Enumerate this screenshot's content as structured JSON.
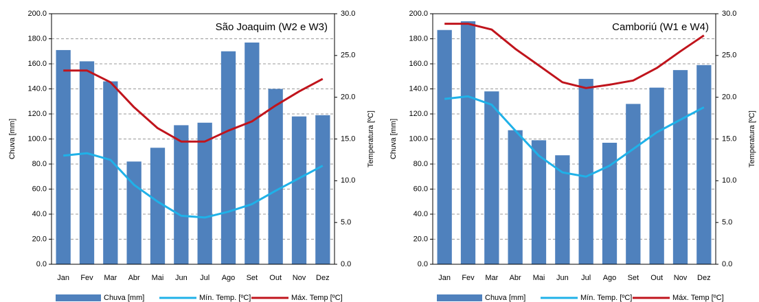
{
  "chart_data": [
    {
      "type": "bar",
      "title": "São Joaquim (W2 e W3)",
      "y_label": "Chuva [mm]",
      "y2_label": "Temperatura [ºC]",
      "categories": [
        "Jan",
        "Fev",
        "Mar",
        "Abr",
        "Mai",
        "Jun",
        "Jul",
        "Ago",
        "Set",
        "Out",
        "Nov",
        "Dez"
      ],
      "series": [
        {
          "name": "Chuva [mm]",
          "type": "bar",
          "color": "#4f81bd",
          "values": [
            171,
            162,
            146,
            82,
            93,
            111,
            113,
            170,
            177,
            140,
            118,
            119
          ]
        },
        {
          "name": "Mín. Temp. [ºC]",
          "type": "line",
          "axis": "y2",
          "color": "#1fb1e8",
          "values": [
            13.0,
            13.3,
            12.5,
            9.5,
            7.5,
            5.8,
            5.6,
            6.3,
            7.2,
            8.8,
            10.3,
            11.8
          ]
        },
        {
          "name": "Máx. Temp [ºC]",
          "type": "line",
          "axis": "y2",
          "color": "#c0141c",
          "values": [
            23.2,
            23.2,
            21.8,
            18.8,
            16.3,
            14.7,
            14.7,
            16.0,
            17.1,
            19.0,
            20.7,
            22.2
          ]
        }
      ],
      "ylim": [
        0,
        200
      ],
      "yticks": [
        {
          "value": 0,
          "label": "0.0"
        },
        {
          "value": 20,
          "label": "20.0"
        },
        {
          "value": 40,
          "label": "40.0"
        },
        {
          "value": 60,
          "label": "60.0"
        },
        {
          "value": 80,
          "label": "80.0"
        },
        {
          "value": 100,
          "label": "100.0"
        },
        {
          "value": 120,
          "label": "120.0"
        },
        {
          "value": 140,
          "label": "140.0"
        },
        {
          "value": 160,
          "label": "160.0"
        },
        {
          "value": 180,
          "label": "180.0"
        },
        {
          "value": 200,
          "label": "200.0"
        }
      ],
      "y2lim": [
        0,
        30
      ],
      "y2ticks": [
        {
          "value": 0,
          "label": "0.0"
        },
        {
          "value": 5,
          "label": "5.0"
        },
        {
          "value": 10,
          "label": "10.0"
        },
        {
          "value": 15,
          "label": "15.0"
        },
        {
          "value": 20,
          "label": "20.0"
        },
        {
          "value": 25,
          "label": "25.0"
        },
        {
          "value": 30,
          "label": "30.0"
        }
      ],
      "grid": true
    },
    {
      "type": "bar",
      "title": "Camboriú (W1 e W4)",
      "y_label": "Chuva [mm]",
      "y2_label": "Temperatura [ºC]",
      "categories": [
        "Jan",
        "Fev",
        "Mar",
        "Abr",
        "Mai",
        "Jun",
        "Jul",
        "Ago",
        "Set",
        "Out",
        "Nov",
        "Dez"
      ],
      "series": [
        {
          "name": "Chuva [mm]",
          "type": "bar",
          "color": "#4f81bd",
          "values": [
            187,
            194,
            138,
            107,
            99,
            87,
            148,
            97,
            128,
            141,
            155,
            159
          ]
        },
        {
          "name": "Mín. Temp. [ºC]",
          "type": "line",
          "axis": "y2",
          "color": "#1fb1e8",
          "values": [
            19.8,
            20.1,
            19.1,
            16.0,
            13.0,
            11.0,
            10.5,
            11.8,
            13.8,
            15.8,
            17.3,
            18.8
          ]
        },
        {
          "name": "Máx. Temp [ºC]",
          "type": "line",
          "axis": "y2",
          "color": "#c0141c",
          "values": [
            28.8,
            28.8,
            28.1,
            25.8,
            23.8,
            21.8,
            21.1,
            21.5,
            22.0,
            23.5,
            25.5,
            27.4
          ]
        }
      ],
      "ylim": [
        0,
        200
      ],
      "yticks": [
        {
          "value": 0,
          "label": "0.0"
        },
        {
          "value": 20,
          "label": "20.0"
        },
        {
          "value": 40,
          "label": "40.0"
        },
        {
          "value": 60,
          "label": "60.0"
        },
        {
          "value": 80,
          "label": "80.0"
        },
        {
          "value": 100,
          "label": "100.0"
        },
        {
          "value": 120,
          "label": "120.0"
        },
        {
          "value": 140,
          "label": "140.0"
        },
        {
          "value": 160,
          "label": "160.0"
        },
        {
          "value": 180,
          "label": "180.0"
        },
        {
          "value": 200,
          "label": "200.0"
        }
      ],
      "y2lim": [
        0,
        30
      ],
      "y2ticks": [
        {
          "value": 0,
          "label": "0.0"
        },
        {
          "value": 5,
          "label": "5.0"
        },
        {
          "value": 10,
          "label": "10.0"
        },
        {
          "value": 15,
          "label": "15.0"
        },
        {
          "value": 20,
          "label": "20.0"
        },
        {
          "value": 25,
          "label": "25.0"
        },
        {
          "value": 30,
          "label": "30.0"
        }
      ],
      "grid": true
    }
  ]
}
